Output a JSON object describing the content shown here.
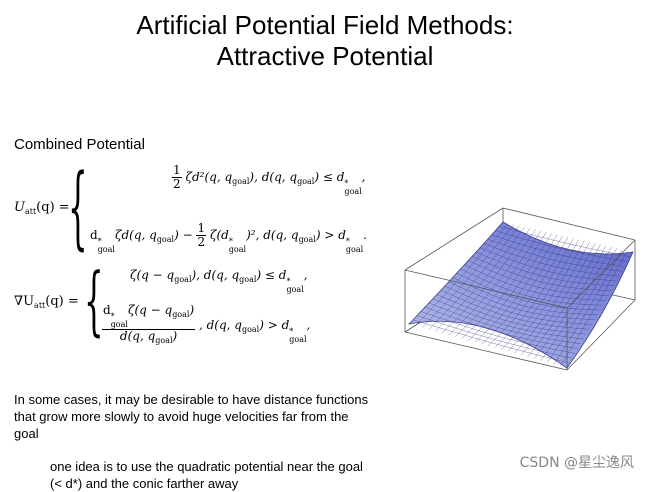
{
  "title": {
    "line1": "Artificial Potential Field Methods:",
    "line2": "Attractive Potential"
  },
  "section_heading": "Combined Potential",
  "equations": {
    "u_lhs": "U",
    "u_lhs_sub": "att",
    "u_lhs_arg": "(q) =",
    "u_case1_formula": "ζd²(q, q",
    "u_case1_cond": "), d(q, q",
    "u_case1_cond_end": ") ≤ d",
    "u_case2_formula": "ζd(q, q",
    "u_case2_mid": ") −",
    "u_case2_tail": "ζ(d",
    "u_case2_tail2": ")², d(q, q",
    "u_case2_cond": ") > d",
    "grad_lhs": "∇U",
    "grad_case1": "ζ(q − q",
    "grad_case1_cond": "), d(q, q",
    "grad_case1_cond_end": ") ≤ d",
    "grad_case2_num": "ζ(q − q",
    "grad_case2_den": "d(q, q",
    "grad_case2_cond": ", d(q, q",
    "grad_case2_cond_end": ") > d",
    "goal": "goal",
    "half_num": "1",
    "half_den": "2",
    "star": "*"
  },
  "paragraph1": "In some cases, it may be desirable to have distance functions that grow more slowly to avoid huge velocities far from the goal",
  "paragraph2": "one idea is to use the quadratic potential near the goal (< d*) and the conic farther away",
  "watermark": "CSDN @星尘逸风",
  "colors": {
    "surface_dark": "#5a62c8",
    "surface_light": "#b9c2ea",
    "box": "#555555"
  }
}
